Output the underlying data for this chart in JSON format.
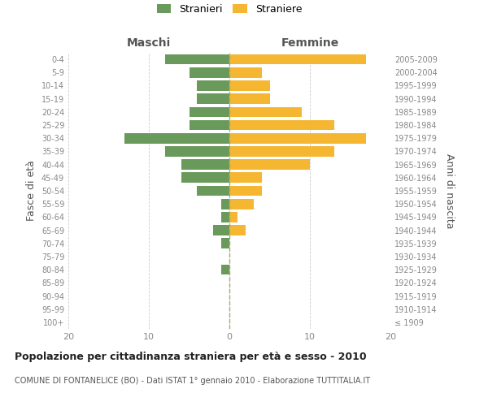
{
  "age_groups": [
    "100+",
    "95-99",
    "90-94",
    "85-89",
    "80-84",
    "75-79",
    "70-74",
    "65-69",
    "60-64",
    "55-59",
    "50-54",
    "45-49",
    "40-44",
    "35-39",
    "30-34",
    "25-29",
    "20-24",
    "15-19",
    "10-14",
    "5-9",
    "0-4"
  ],
  "birth_years": [
    "≤ 1909",
    "1910-1914",
    "1915-1919",
    "1920-1924",
    "1925-1929",
    "1930-1934",
    "1935-1939",
    "1940-1944",
    "1945-1949",
    "1950-1954",
    "1955-1959",
    "1960-1964",
    "1965-1969",
    "1970-1974",
    "1975-1979",
    "1980-1984",
    "1985-1989",
    "1990-1994",
    "1995-1999",
    "2000-2004",
    "2005-2009"
  ],
  "males": [
    0,
    0,
    0,
    0,
    1,
    0,
    1,
    2,
    1,
    1,
    4,
    6,
    6,
    8,
    13,
    5,
    5,
    4,
    4,
    5,
    8
  ],
  "females": [
    0,
    0,
    0,
    0,
    0,
    0,
    0,
    2,
    1,
    3,
    4,
    4,
    10,
    13,
    17,
    13,
    9,
    5,
    5,
    4,
    17
  ],
  "male_color": "#6a9a5b",
  "female_color": "#f5b731",
  "background_color": "#ffffff",
  "grid_color": "#cccccc",
  "title": "Popolazione per cittadinanza straniera per età e sesso - 2010",
  "subtitle": "COMUNE DI FONTANELICE (BO) - Dati ISTAT 1° gennaio 2010 - Elaborazione TUTTITALIA.IT",
  "ylabel_left": "Fasce di età",
  "ylabel_right": "Anni di nascita",
  "xlabel_left": "Maschi",
  "xlabel_right": "Femmine",
  "legend_male": "Stranieri",
  "legend_female": "Straniere",
  "xlim": 20,
  "figwidth": 6.0,
  "figheight": 5.0,
  "dpi": 100
}
